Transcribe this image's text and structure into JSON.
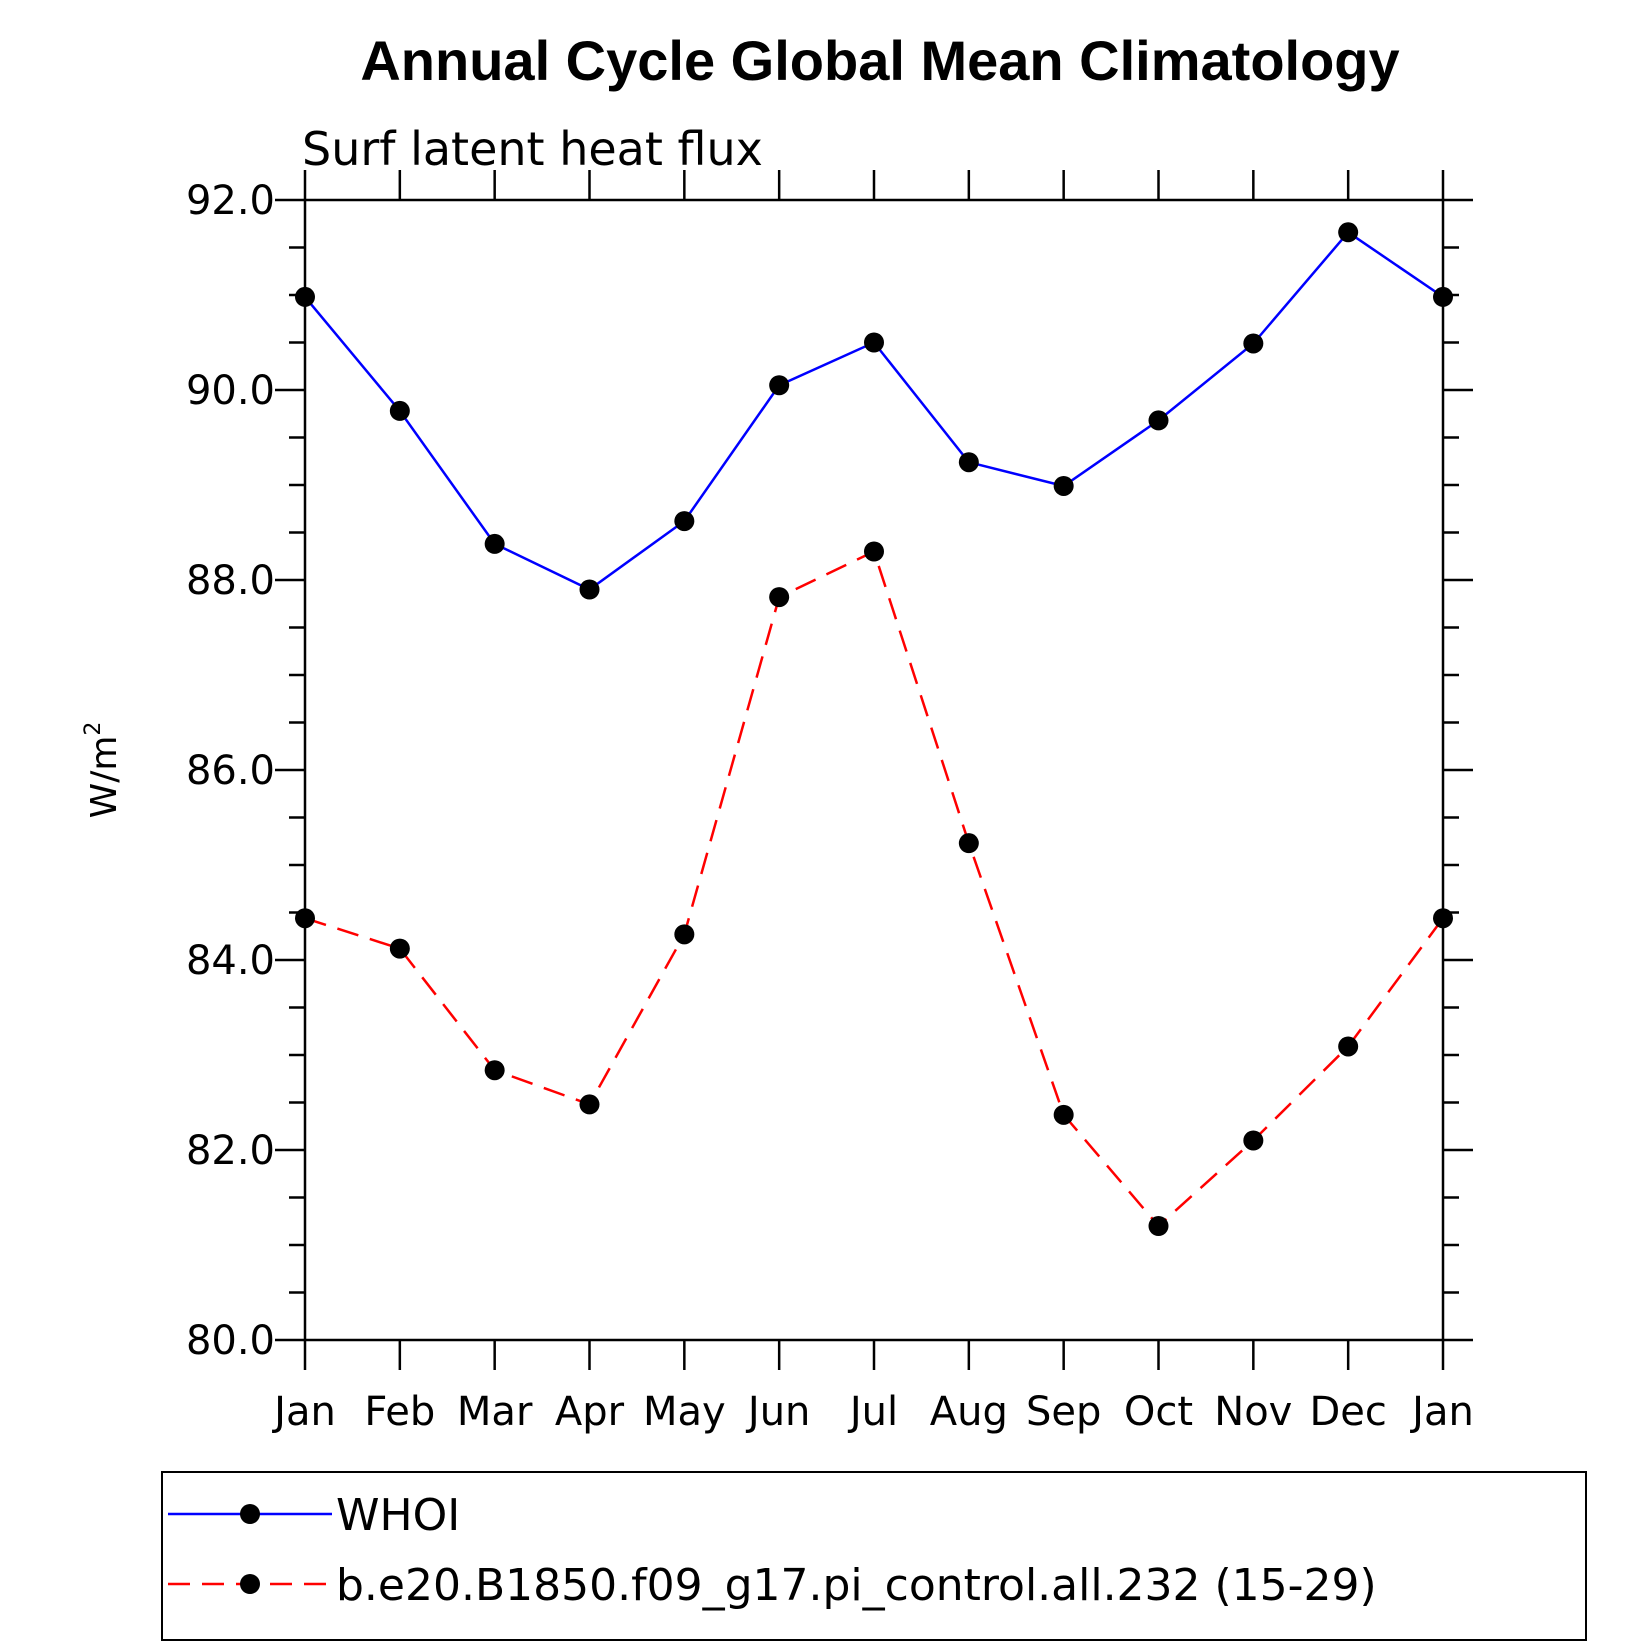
{
  "chart_data": {
    "type": "line",
    "title": "Annual Cycle Global Mean Climatology",
    "subtitle": "Surf latent heat flux",
    "ylabel": "W/m",
    "ylabel_superscript": "2",
    "xlabel": "",
    "categories": [
      "Jan",
      "Feb",
      "Mar",
      "Apr",
      "May",
      "Jun",
      "Jul",
      "Aug",
      "Sep",
      "Oct",
      "Nov",
      "Dec",
      "Jan"
    ],
    "ylim": [
      80.0,
      92.0
    ],
    "yticks": [
      "80.0",
      "82.0",
      "84.0",
      "86.0",
      "88.0",
      "90.0",
      "92.0"
    ],
    "grid": false,
    "legend_position": "bottom",
    "series": [
      {
        "name": "WHOI",
        "color": "#0000ff",
        "style": "solid",
        "marker": "dot",
        "values": [
          90.98,
          89.78,
          88.38,
          87.9,
          88.62,
          90.05,
          90.5,
          89.24,
          88.99,
          89.68,
          90.49,
          91.66,
          90.98
        ]
      },
      {
        "name": "b.e20.B1850.f09_g17.pi_control.all.232 (15-29)",
        "color": "#ff0000",
        "style": "dashed",
        "marker": "dot",
        "values": [
          84.44,
          84.12,
          82.84,
          82.48,
          84.27,
          87.82,
          88.3,
          85.23,
          82.37,
          81.2,
          82.1,
          83.09,
          84.44
        ]
      }
    ]
  }
}
